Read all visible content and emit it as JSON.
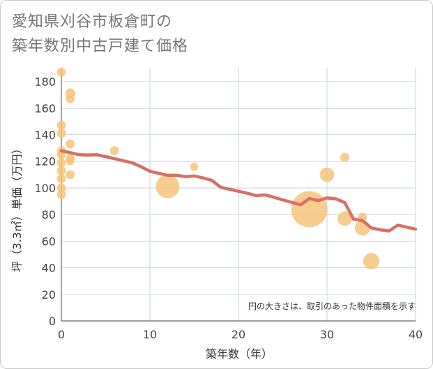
{
  "title": {
    "line1": "愛知県刈谷市板倉町の",
    "line2": "築年数別中古戸建て価格"
  },
  "chart_data": {
    "type": "scatter",
    "title": "愛知県刈谷市板倉町の築年数別中古戸建て価格",
    "xlabel": "築年数（年）",
    "ylabel": "坪（3.3㎡）単価（万円）",
    "xlim": [
      0,
      40
    ],
    "ylim": [
      0,
      190
    ],
    "x_ticks": [
      0,
      10,
      20,
      30,
      40
    ],
    "y_ticks": [
      0,
      20,
      40,
      60,
      80,
      100,
      120,
      140,
      160,
      180
    ],
    "grid": true,
    "note": "円の大きさは、取引のあった物件面積を示す",
    "colors": {
      "bubble": "#f5c276",
      "line": "#d87062",
      "grid": "#c7d3df"
    },
    "scatter": [
      {
        "x": 0,
        "y": 187,
        "size": 1.0
      },
      {
        "x": 0,
        "y": 147,
        "size": 1.0
      },
      {
        "x": 0,
        "y": 141,
        "size": 1.0
      },
      {
        "x": 0,
        "y": 128,
        "size": 1.0
      },
      {
        "x": 0,
        "y": 125,
        "size": 1.0
      },
      {
        "x": 0,
        "y": 119,
        "size": 1.0
      },
      {
        "x": 0,
        "y": 113,
        "size": 1.0
      },
      {
        "x": 0,
        "y": 107,
        "size": 1.0
      },
      {
        "x": 0,
        "y": 100,
        "size": 1.0
      },
      {
        "x": 0,
        "y": 95,
        "size": 1.0
      },
      {
        "x": 1,
        "y": 171,
        "size": 1.1
      },
      {
        "x": 1,
        "y": 167,
        "size": 1.0
      },
      {
        "x": 1,
        "y": 133,
        "size": 1.0
      },
      {
        "x": 1,
        "y": 122,
        "size": 1.0
      },
      {
        "x": 1,
        "y": 120,
        "size": 0.9
      },
      {
        "x": 1,
        "y": 110,
        "size": 1.0
      },
      {
        "x": 6,
        "y": 128,
        "size": 1.0
      },
      {
        "x": 12,
        "y": 101,
        "size": 2.6
      },
      {
        "x": 15,
        "y": 116,
        "size": 0.9
      },
      {
        "x": 28,
        "y": 84,
        "size": 4.0
      },
      {
        "x": 30,
        "y": 110,
        "size": 1.6
      },
      {
        "x": 32,
        "y": 123,
        "size": 1.0
      },
      {
        "x": 32,
        "y": 77,
        "size": 1.6
      },
      {
        "x": 34,
        "y": 78,
        "size": 1.0
      },
      {
        "x": 34,
        "y": 70,
        "size": 1.7
      },
      {
        "x": 35,
        "y": 45,
        "size": 1.8
      }
    ],
    "line": {
      "x": [
        0,
        1,
        2,
        3,
        4,
        5,
        6,
        7,
        8,
        9,
        10,
        11,
        12,
        13,
        14,
        15,
        16,
        17,
        18,
        19,
        20,
        21,
        22,
        23,
        24,
        25,
        26,
        27,
        28,
        29,
        30,
        31,
        32,
        33,
        34,
        35,
        36,
        37,
        38,
        39,
        40
      ],
      "y": [
        128,
        126.5,
        125,
        124.8,
        125,
        123.5,
        122,
        120.5,
        118.8,
        116,
        112.5,
        111,
        109.5,
        109.5,
        108.5,
        109,
        107.5,
        105.7,
        100.5,
        99,
        97.5,
        96,
        94.2,
        94.8,
        93,
        91,
        89.2,
        87.3,
        92,
        90.5,
        92.5,
        91.8,
        89,
        76.5,
        75.5,
        70,
        68.5,
        67.7,
        72,
        70.5,
        69
      ]
    }
  }
}
